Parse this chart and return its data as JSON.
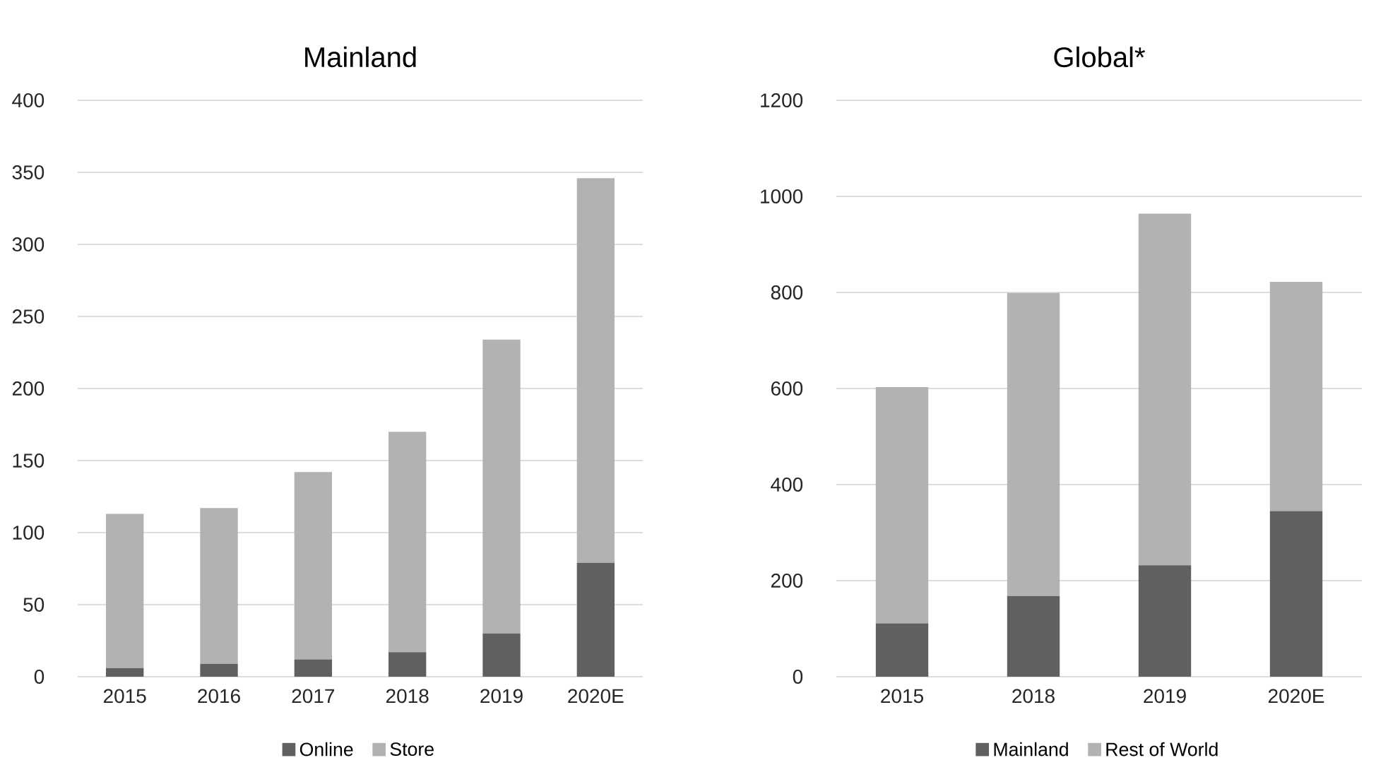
{
  "chart_data": [
    {
      "type": "bar",
      "title": "Mainland",
      "categories": [
        "2015",
        "2016",
        "2017",
        "2018",
        "2019",
        "2020E"
      ],
      "stacked": true,
      "series": [
        {
          "name": "Online",
          "color": "#606060",
          "values": [
            6,
            9,
            12,
            17,
            30,
            79
          ]
        },
        {
          "name": "Store",
          "color": "#b2b2b2",
          "values": [
            107,
            108,
            130,
            153,
            204,
            267
          ]
        }
      ],
      "ylim": [
        0,
        400
      ],
      "yticks": [
        0,
        50,
        100,
        150,
        200,
        250,
        300,
        350,
        400
      ],
      "grid": "y",
      "legend": "bottom"
    },
    {
      "type": "bar",
      "title": "Global*",
      "categories": [
        "2015",
        "2018",
        "2019",
        "2020E"
      ],
      "stacked": true,
      "series": [
        {
          "name": "Mainland",
          "color": "#606060",
          "values": [
            111,
            168,
            232,
            345
          ]
        },
        {
          "name": "Rest of World",
          "color": "#b2b2b2",
          "values": [
            492,
            631,
            732,
            477
          ]
        }
      ],
      "ylim": [
        0,
        1200
      ],
      "yticks": [
        0,
        200,
        400,
        600,
        800,
        1000,
        1200
      ],
      "grid": "y",
      "legend": "bottom"
    }
  ]
}
